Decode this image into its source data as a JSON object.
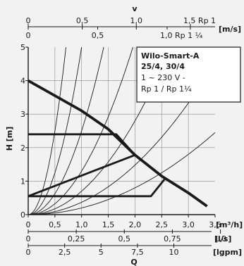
{
  "chart_data": {
    "type": "line",
    "title": "",
    "x_axis": {
      "label": "Q",
      "range": [
        0,
        3.5
      ],
      "ticks": [
        "0",
        "0,5",
        "1,0",
        "1,5",
        "2,0",
        "2,5",
        "3,0",
        "3,5"
      ],
      "unit": "[m³/h]"
    },
    "y_axis": {
      "label": "H [m]",
      "range": [
        0,
        5
      ],
      "ticks": [
        "0",
        "1",
        "2",
        "3",
        "4",
        "5"
      ]
    },
    "secondary_x_axes": [
      {
        "position": "bottom",
        "unit": "[l/s]",
        "ticks": [
          "0",
          "0,25",
          "0,5",
          "0,75",
          "1,0"
        ]
      },
      {
        "position": "bottom",
        "unit": "[lgpm]",
        "ticks": [
          "0",
          "2,5",
          "5",
          "7,5",
          "10"
        ]
      },
      {
        "position": "top",
        "label": "v",
        "unit": "[m/s]",
        "ticks": [
          "0",
          "0,5",
          "1,0",
          "1,5 Rp 1"
        ]
      },
      {
        "position": "top",
        "unit": "",
        "ticks": [
          "0",
          "0,5",
          "1,0  Rp 1 ¼"
        ]
      }
    ],
    "legend_box": {
      "title_lines": [
        "Wilo-Smart-A",
        "25/4, 30/4"
      ],
      "lines": [
        "1 ~ 230 V -",
        "Rp 1 / Rp 1¼"
      ]
    },
    "series": [
      {
        "values": [
          [
            0,
            4.0
          ],
          [
            0.5,
            3.55
          ],
          [
            1.0,
            3.1
          ],
          [
            1.5,
            2.55
          ],
          [
            2.0,
            1.78
          ],
          [
            2.5,
            1.15
          ],
          [
            3.0,
            0.65
          ],
          [
            3.35,
            0.25
          ]
        ]
      },
      {
        "values": [
          [
            0,
            2.4
          ],
          [
            1.65,
            2.4
          ],
          [
            2.0,
            1.78
          ]
        ]
      },
      {
        "values": [
          [
            0,
            0.55
          ],
          [
            2.0,
            1.78
          ]
        ]
      },
      {
        "values": [
          [
            0,
            0.55
          ],
          [
            2.3,
            0.55
          ],
          [
            2.55,
            1.05
          ]
        ]
      }
    ],
    "system_curves_k": [
      10.0,
      5.0,
      2.5,
      1.3,
      0.7,
      0.37,
      0.2
    ],
    "grid": true,
    "style": {
      "main_color": "#1a1a1a",
      "background": "#f2f2f2",
      "grid_color": "#8a8a8a"
    }
  }
}
